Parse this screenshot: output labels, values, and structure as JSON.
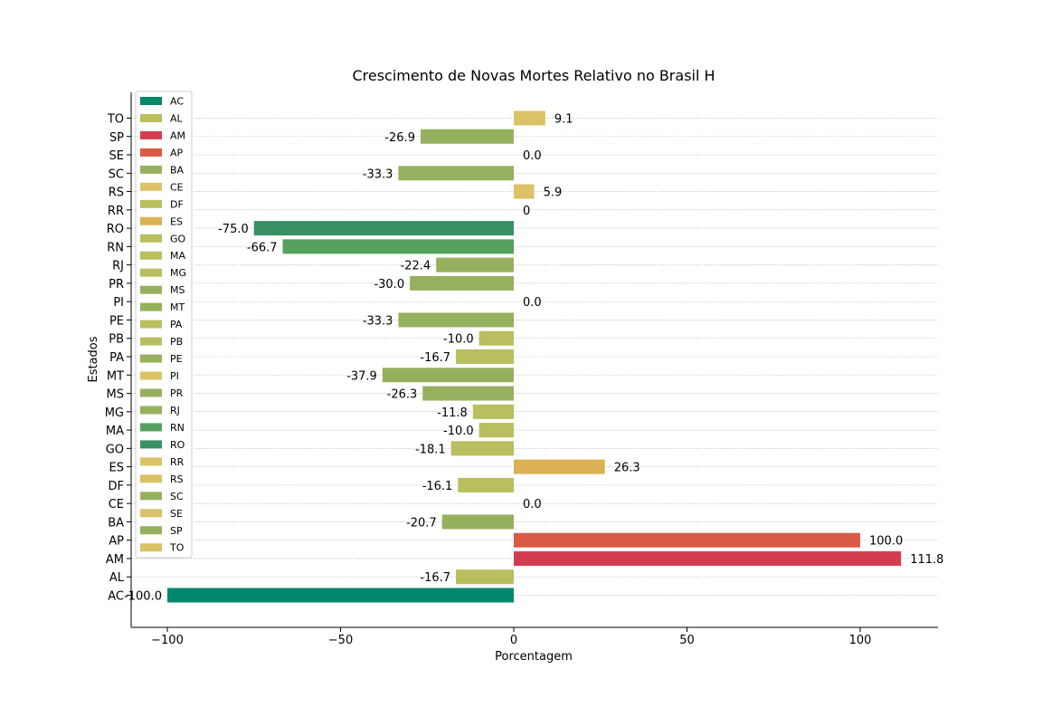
{
  "chart_data": {
    "type": "bar",
    "orientation": "horizontal",
    "title": "Crescimento de Novas Mortes Relativo no Brasil H",
    "xlabel": "Porcentagem",
    "ylabel": "Estados",
    "xlim": [
      -110,
      122
    ],
    "xticks": [
      -100,
      -50,
      0,
      50,
      100
    ],
    "xtick_labels": [
      "−100",
      "−50",
      "0",
      "50",
      "100"
    ],
    "grid": "horizontal dotted",
    "legend_position": "upper left",
    "categories": [
      "AC",
      "AL",
      "AM",
      "AP",
      "BA",
      "CE",
      "DF",
      "ES",
      "GO",
      "MA",
      "MG",
      "MS",
      "MT",
      "PA",
      "PB",
      "PE",
      "PI",
      "PR",
      "RJ",
      "RN",
      "RO",
      "RR",
      "RS",
      "SC",
      "SE",
      "SP",
      "TO"
    ],
    "values": [
      -100.0,
      -16.7,
      111.8,
      100.0,
      -20.7,
      0.0,
      -16.1,
      26.3,
      -18.1,
      -10.0,
      -11.8,
      -26.3,
      -37.9,
      -16.7,
      -10.0,
      -33.3,
      0.0,
      -30.0,
      -22.4,
      -66.7,
      -75.0,
      0,
      5.9,
      -33.3,
      0.0,
      -26.9,
      9.1
    ],
    "value_labels": [
      "-100.0",
      "-16.7",
      "111.8",
      "100.0",
      "-20.7",
      "0.0",
      "-16.1",
      "26.3",
      "-18.1",
      "-10.0",
      "-11.8",
      "-26.3",
      "-37.9",
      "-16.7",
      "-10.0",
      "-33.3",
      "0.0",
      "-30.0",
      "-22.4",
      "-66.7",
      "-75.0",
      "0",
      "5.9",
      "-33.3",
      "0.0",
      "-26.9",
      "9.1"
    ],
    "colors": [
      "#00876c",
      "#b9be5e",
      "#d43d51",
      "#db5a45",
      "#96b15e",
      "#dbc266",
      "#b9be5e",
      "#dcb155",
      "#b9be5e",
      "#b9be5e",
      "#b9be5e",
      "#96b15e",
      "#96b15e",
      "#b9be5e",
      "#b9be5e",
      "#96b15e",
      "#dbc266",
      "#96b15e",
      "#96b15e",
      "#56a05f",
      "#3a9066",
      "#dbc266",
      "#dbc266",
      "#96b15e",
      "#dbc266",
      "#96b15e",
      "#dbc266"
    ]
  }
}
